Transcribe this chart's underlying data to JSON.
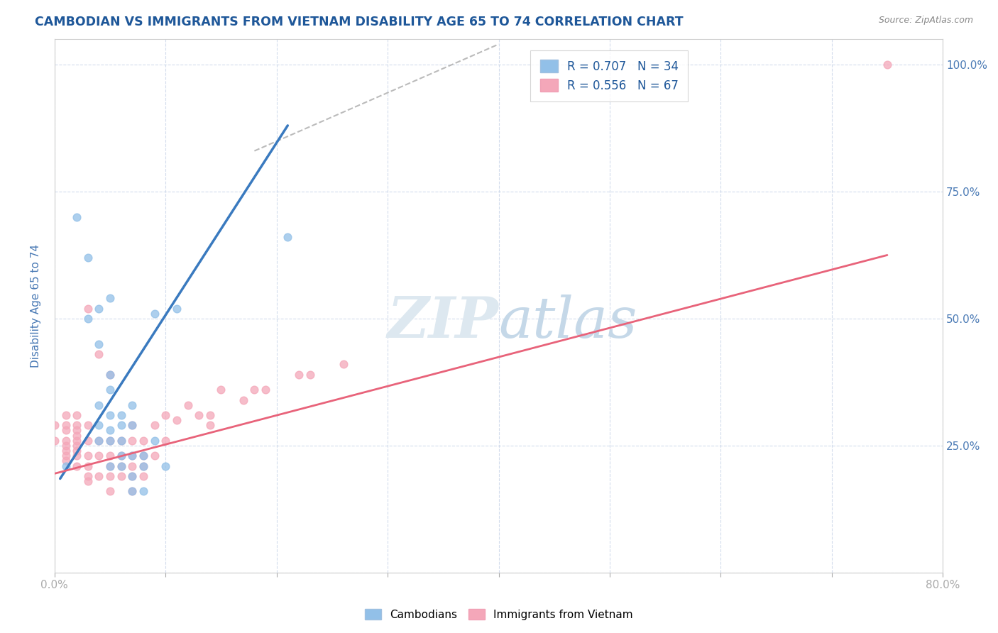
{
  "title": "CAMBODIAN VS IMMIGRANTS FROM VIETNAM DISABILITY AGE 65 TO 74 CORRELATION CHART",
  "source": "Source: ZipAtlas.com",
  "ylabel": "Disability Age 65 to 74",
  "xmin": 0.0,
  "xmax": 0.8,
  "ymin": 0.0,
  "ymax": 1.05,
  "legend1_r": "0.707",
  "legend1_n": "34",
  "legend2_r": "0.556",
  "legend2_n": "67",
  "cambodian_color": "#92c0e8",
  "vietnam_color": "#f4a7b9",
  "cambodian_line_color": "#3a7abf",
  "vietnam_line_color": "#e8637a",
  "trendline_dash_color": "#aaaaaa",
  "cambodian_line": [
    [
      0.005,
      0.185
    ],
    [
      0.21,
      0.88
    ]
  ],
  "vietnam_line": [
    [
      0.0,
      0.195
    ],
    [
      0.75,
      0.625
    ]
  ],
  "dash_line": [
    [
      0.18,
      0.83
    ],
    [
      0.4,
      1.04
    ]
  ],
  "cambodian_scatter": [
    [
      0.01,
      0.21
    ],
    [
      0.02,
      0.7
    ],
    [
      0.03,
      0.62
    ],
    [
      0.03,
      0.5
    ],
    [
      0.04,
      0.52
    ],
    [
      0.04,
      0.45
    ],
    [
      0.04,
      0.33
    ],
    [
      0.04,
      0.29
    ],
    [
      0.04,
      0.26
    ],
    [
      0.05,
      0.54
    ],
    [
      0.05,
      0.39
    ],
    [
      0.05,
      0.36
    ],
    [
      0.05,
      0.31
    ],
    [
      0.05,
      0.28
    ],
    [
      0.05,
      0.26
    ],
    [
      0.05,
      0.21
    ],
    [
      0.06,
      0.31
    ],
    [
      0.06,
      0.29
    ],
    [
      0.06,
      0.26
    ],
    [
      0.06,
      0.23
    ],
    [
      0.06,
      0.21
    ],
    [
      0.07,
      0.33
    ],
    [
      0.07,
      0.29
    ],
    [
      0.07,
      0.23
    ],
    [
      0.07,
      0.19
    ],
    [
      0.07,
      0.16
    ],
    [
      0.08,
      0.23
    ],
    [
      0.08,
      0.21
    ],
    [
      0.08,
      0.16
    ],
    [
      0.09,
      0.51
    ],
    [
      0.09,
      0.26
    ],
    [
      0.1,
      0.21
    ],
    [
      0.11,
      0.52
    ],
    [
      0.21,
      0.66
    ]
  ],
  "vietnam_scatter": [
    [
      0.0,
      0.29
    ],
    [
      0.0,
      0.26
    ],
    [
      0.01,
      0.31
    ],
    [
      0.01,
      0.29
    ],
    [
      0.01,
      0.28
    ],
    [
      0.01,
      0.26
    ],
    [
      0.01,
      0.25
    ],
    [
      0.01,
      0.24
    ],
    [
      0.01,
      0.23
    ],
    [
      0.01,
      0.22
    ],
    [
      0.02,
      0.31
    ],
    [
      0.02,
      0.29
    ],
    [
      0.02,
      0.28
    ],
    [
      0.02,
      0.27
    ],
    [
      0.02,
      0.26
    ],
    [
      0.02,
      0.25
    ],
    [
      0.02,
      0.24
    ],
    [
      0.02,
      0.23
    ],
    [
      0.02,
      0.21
    ],
    [
      0.03,
      0.29
    ],
    [
      0.03,
      0.26
    ],
    [
      0.03,
      0.23
    ],
    [
      0.03,
      0.21
    ],
    [
      0.03,
      0.19
    ],
    [
      0.03,
      0.18
    ],
    [
      0.03,
      0.52
    ],
    [
      0.04,
      0.43
    ],
    [
      0.04,
      0.26
    ],
    [
      0.04,
      0.23
    ],
    [
      0.04,
      0.19
    ],
    [
      0.05,
      0.39
    ],
    [
      0.05,
      0.26
    ],
    [
      0.05,
      0.23
    ],
    [
      0.05,
      0.21
    ],
    [
      0.05,
      0.19
    ],
    [
      0.05,
      0.16
    ],
    [
      0.06,
      0.26
    ],
    [
      0.06,
      0.23
    ],
    [
      0.06,
      0.21
    ],
    [
      0.06,
      0.19
    ],
    [
      0.07,
      0.29
    ],
    [
      0.07,
      0.26
    ],
    [
      0.07,
      0.23
    ],
    [
      0.07,
      0.21
    ],
    [
      0.07,
      0.19
    ],
    [
      0.07,
      0.16
    ],
    [
      0.08,
      0.26
    ],
    [
      0.08,
      0.23
    ],
    [
      0.08,
      0.21
    ],
    [
      0.08,
      0.19
    ],
    [
      0.09,
      0.29
    ],
    [
      0.09,
      0.23
    ],
    [
      0.1,
      0.31
    ],
    [
      0.1,
      0.26
    ],
    [
      0.11,
      0.3
    ],
    [
      0.12,
      0.33
    ],
    [
      0.13,
      0.31
    ],
    [
      0.14,
      0.31
    ],
    [
      0.14,
      0.29
    ],
    [
      0.15,
      0.36
    ],
    [
      0.17,
      0.34
    ],
    [
      0.18,
      0.36
    ],
    [
      0.19,
      0.36
    ],
    [
      0.22,
      0.39
    ],
    [
      0.23,
      0.39
    ],
    [
      0.26,
      0.41
    ],
    [
      0.75,
      1.0
    ]
  ],
  "background_color": "#ffffff",
  "plot_bg_color": "#ffffff",
  "grid_color": "#c8d4e8",
  "title_color": "#1e5799",
  "axis_label_color": "#4a7ab5",
  "tick_label_color": "#4a7ab5"
}
